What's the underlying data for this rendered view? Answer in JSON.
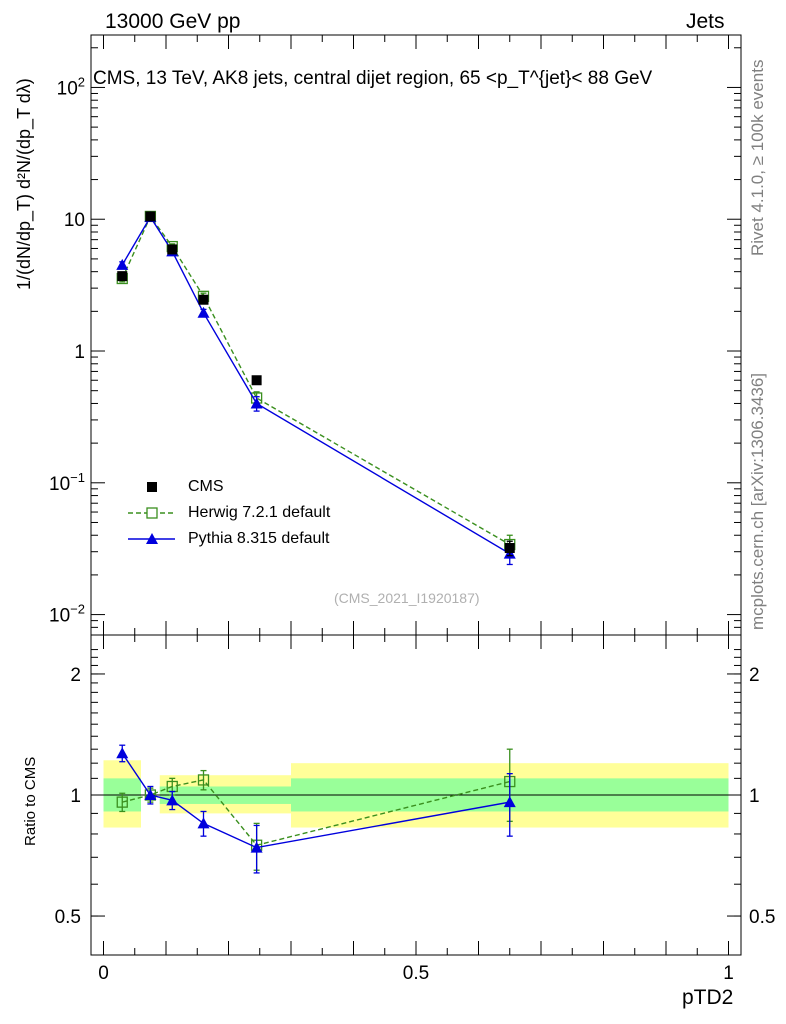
{
  "header": {
    "left": "13000 GeV pp",
    "right": "Jets"
  },
  "side_text": {
    "rivet": "Rivet 4.1.0, ≥ 100k events",
    "mcplots": "mcplots.cern.ch [arXiv:1306.3436]"
  },
  "analysis_id": "(CMS_2021_I1920187)",
  "colors": {
    "cms": "#000000",
    "herwig": "#3a8f1e",
    "pythia": "#0000dd",
    "band_inner": "#99ff99",
    "band_outer": "#ffff99"
  },
  "chart_data": [
    {
      "type": "scatter",
      "panel": "main",
      "title": "CMS, 13 TeV, AK8 jets, central dijet region, 65 <p_T^{jet}< 88 GeV",
      "ylabel": "1/(dN/dp_T) d²N/(dp_T dλ)",
      "yscale": "log",
      "ylim": [
        0.007,
        250
      ],
      "xlim": [
        -0.02,
        1.02
      ],
      "y_ticks": [
        {
          "value": 0.01,
          "base": "10",
          "exp": "−2"
        },
        {
          "value": 0.1,
          "base": "10",
          "exp": "−1"
        },
        {
          "value": 1,
          "base": "1",
          "exp": ""
        },
        {
          "value": 10,
          "base": "10",
          "exp": ""
        },
        {
          "value": 100,
          "base": "10",
          "exp": "2"
        }
      ],
      "legend": {
        "position": "bottom-left"
      },
      "series": [
        {
          "name": "CMS",
          "x": [
            0.03,
            0.075,
            0.11,
            0.16,
            0.245,
            0.65
          ],
          "y": [
            3.7,
            10.5,
            5.9,
            2.45,
            0.6,
            0.032
          ],
          "err": [
            0.2,
            0.4,
            0.3,
            0.15,
            0.04,
            0.004
          ]
        },
        {
          "name": "Herwig 7.2.1 default",
          "x": [
            0.03,
            0.075,
            0.11,
            0.16,
            0.245,
            0.65
          ],
          "y": [
            3.55,
            10.5,
            6.2,
            2.6,
            0.44,
            0.034
          ],
          "err": [
            0.2,
            0.4,
            0.3,
            0.15,
            0.05,
            0.006
          ]
        },
        {
          "name": "Pythia 8.315 default",
          "x": [
            0.03,
            0.075,
            0.11,
            0.16,
            0.245,
            0.65
          ],
          "y": [
            4.5,
            10.4,
            5.7,
            1.95,
            0.4,
            0.029
          ],
          "err": [
            0.25,
            0.4,
            0.3,
            0.12,
            0.05,
            0.005
          ]
        }
      ]
    },
    {
      "type": "scatter",
      "panel": "ratio",
      "xlabel": "pTD2",
      "ylabel": "Ratio to CMS",
      "yscale": "log",
      "ylim": [
        0.4,
        2.5
      ],
      "xlim": [
        -0.02,
        1.02
      ],
      "x_ticks": [
        0,
        0.5,
        1
      ],
      "y_ticks": [
        0.5,
        1,
        2
      ],
      "reference": 1,
      "bands": [
        {
          "x0": 0.0,
          "x1": 0.06,
          "inner": [
            0.91,
            1.1
          ],
          "outer": [
            0.83,
            1.22
          ]
        },
        {
          "x0": 0.09,
          "x1": 0.3,
          "inner": [
            0.95,
            1.05
          ],
          "outer": [
            0.9,
            1.12
          ]
        },
        {
          "x0": 0.3,
          "x1": 1.0,
          "inner": [
            0.91,
            1.1
          ],
          "outer": [
            0.83,
            1.2
          ]
        }
      ],
      "series": [
        {
          "name": "Herwig 7.2.1 default",
          "x": [
            0.03,
            0.075,
            0.11,
            0.16,
            0.245,
            0.65
          ],
          "y": [
            0.96,
            1.0,
            1.05,
            1.09,
            0.75,
            1.08
          ],
          "err": [
            0.05,
            0.04,
            0.05,
            0.06,
            0.1,
            0.22
          ]
        },
        {
          "name": "Pythia 8.315 default",
          "x": [
            0.03,
            0.075,
            0.11,
            0.16,
            0.245,
            0.65
          ],
          "y": [
            1.27,
            1.0,
            0.97,
            0.85,
            0.74,
            0.96
          ],
          "err": [
            0.06,
            0.05,
            0.05,
            0.06,
            0.1,
            0.17
          ]
        }
      ]
    }
  ]
}
